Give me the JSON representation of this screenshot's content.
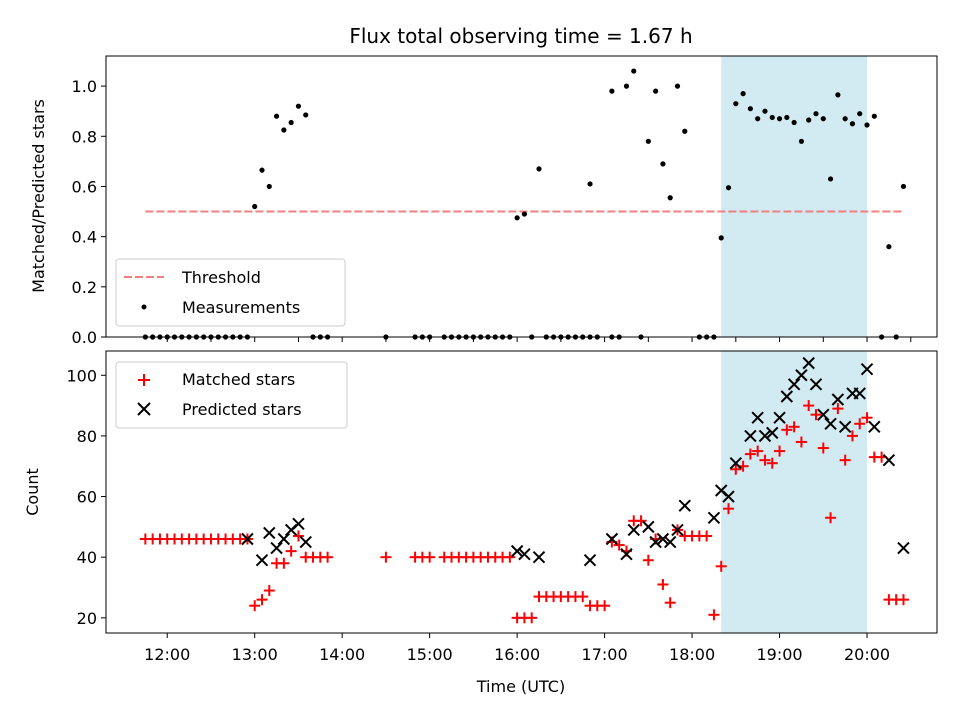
{
  "chart_data": [
    {
      "type": "scatter",
      "title": "Flux total observing time = 1.67 h",
      "xlabel": "",
      "ylabel": "Matched/Predicted stars",
      "xlim": [
        "11:18",
        "20:48"
      ],
      "ylim": [
        0,
        1.12
      ],
      "x_ticks": [
        "12:00",
        "13:00",
        "14:00",
        "15:00",
        "16:00",
        "17:00",
        "18:00",
        "19:00",
        "20:00"
      ],
      "y_ticks": [
        "0.0",
        "0.2",
        "0.4",
        "0.6",
        "0.8",
        "1.0"
      ],
      "shaded_region": {
        "x": [
          "18:20",
          "20:00"
        ],
        "color": "#add8e6"
      },
      "legend_position": "lower-left",
      "threshold": {
        "name": "Threshold",
        "value": 0.5,
        "x": [
          "11:45",
          "20:24"
        ],
        "color": "#f08080"
      },
      "series": [
        {
          "name": "Measurements",
          "color": "#000000",
          "marker": "dot",
          "points": [
            [
              "11:45",
              0
            ],
            [
              "11:50",
              0
            ],
            [
              "11:55",
              0
            ],
            [
              "12:00",
              0
            ],
            [
              "12:05",
              0
            ],
            [
              "12:10",
              0
            ],
            [
              "12:15",
              0
            ],
            [
              "12:20",
              0
            ],
            [
              "12:25",
              0
            ],
            [
              "12:30",
              0
            ],
            [
              "12:35",
              0
            ],
            [
              "12:40",
              0
            ],
            [
              "12:45",
              0
            ],
            [
              "12:50",
              0
            ],
            [
              "12:55",
              0
            ],
            [
              "13:00",
              0.52
            ],
            [
              "13:05",
              0.665
            ],
            [
              "13:10",
              0.6
            ],
            [
              "13:15",
              0.88
            ],
            [
              "13:20",
              0.825
            ],
            [
              "13:25",
              0.855
            ],
            [
              "13:30",
              0.92
            ],
            [
              "13:35",
              0.885
            ],
            [
              "13:40",
              0
            ],
            [
              "13:45",
              0
            ],
            [
              "13:50",
              0
            ],
            [
              "14:30",
              0
            ],
            [
              "14:50",
              0
            ],
            [
              "14:55",
              0
            ],
            [
              "15:00",
              0
            ],
            [
              "15:10",
              0
            ],
            [
              "15:15",
              0
            ],
            [
              "15:20",
              0
            ],
            [
              "15:25",
              0
            ],
            [
              "15:30",
              0
            ],
            [
              "15:35",
              0
            ],
            [
              "15:40",
              0
            ],
            [
              "15:45",
              0
            ],
            [
              "15:50",
              0
            ],
            [
              "15:55",
              0
            ],
            [
              "16:00",
              0.475
            ],
            [
              "16:05",
              0.49
            ],
            [
              "16:15",
              0.67
            ],
            [
              "16:10",
              0
            ],
            [
              "16:20",
              0
            ],
            [
              "16:25",
              0
            ],
            [
              "16:30",
              0
            ],
            [
              "16:35",
              0
            ],
            [
              "16:40",
              0
            ],
            [
              "16:45",
              0
            ],
            [
              "16:50",
              0
            ],
            [
              "16:55",
              0
            ],
            [
              "17:05",
              0
            ],
            [
              "17:10",
              0
            ],
            [
              "17:25",
              0
            ],
            [
              "16:50",
              0.61
            ],
            [
              "17:05",
              0.98
            ],
            [
              "17:15",
              1.0
            ],
            [
              "17:20",
              1.06
            ],
            [
              "17:30",
              0.78
            ],
            [
              "17:35",
              0.98
            ],
            [
              "17:40",
              0.69
            ],
            [
              "17:45",
              0.555
            ],
            [
              "17:50",
              1.0
            ],
            [
              "17:55",
              0.82
            ],
            [
              "18:05",
              0
            ],
            [
              "18:10",
              0
            ],
            [
              "18:15",
              0
            ],
            [
              "18:20",
              0.395
            ],
            [
              "18:25",
              0.595
            ],
            [
              "18:30",
              0.93
            ],
            [
              "18:35",
              0.97
            ],
            [
              "18:40",
              0.91
            ],
            [
              "18:45",
              0.87
            ],
            [
              "18:50",
              0.9
            ],
            [
              "18:55",
              0.875
            ],
            [
              "19:00",
              0.87
            ],
            [
              "19:05",
              0.875
            ],
            [
              "19:10",
              0.855
            ],
            [
              "19:15",
              0.78
            ],
            [
              "19:20",
              0.865
            ],
            [
              "19:25",
              0.89
            ],
            [
              "19:30",
              0.87
            ],
            [
              "19:35",
              0.63
            ],
            [
              "19:40",
              0.965
            ],
            [
              "19:45",
              0.87
            ],
            [
              "19:50",
              0.85
            ],
            [
              "19:55",
              0.89
            ],
            [
              "20:00",
              0.845
            ],
            [
              "20:05",
              0.88
            ],
            [
              "20:10",
              0
            ],
            [
              "20:20",
              0
            ],
            [
              "20:15",
              0.36
            ],
            [
              "20:25",
              0.6
            ]
          ]
        }
      ]
    },
    {
      "type": "scatter",
      "xlabel": "Time (UTC)",
      "ylabel": "Count",
      "xlim": [
        "11:18",
        "20:48"
      ],
      "ylim": [
        15,
        108
      ],
      "x_ticks": [
        "12:00",
        "13:00",
        "14:00",
        "15:00",
        "16:00",
        "17:00",
        "18:00",
        "19:00",
        "20:00"
      ],
      "y_ticks": [
        "20",
        "40",
        "60",
        "80",
        "100"
      ],
      "shaded_region": {
        "x": [
          "18:20",
          "20:00"
        ],
        "color": "#add8e6"
      },
      "legend_position": "upper-left",
      "series": [
        {
          "name": "Matched stars",
          "color": "#ff0000",
          "marker": "plus",
          "points": [
            [
              "11:45",
              46
            ],
            [
              "11:50",
              46
            ],
            [
              "11:55",
              46
            ],
            [
              "12:00",
              46
            ],
            [
              "12:05",
              46
            ],
            [
              "12:10",
              46
            ],
            [
              "12:15",
              46
            ],
            [
              "12:20",
              46
            ],
            [
              "12:25",
              46
            ],
            [
              "12:30",
              46
            ],
            [
              "12:35",
              46
            ],
            [
              "12:40",
              46
            ],
            [
              "12:45",
              46
            ],
            [
              "12:50",
              46
            ],
            [
              "12:55",
              46
            ],
            [
              "13:00",
              24
            ],
            [
              "13:05",
              26
            ],
            [
              "13:10",
              29
            ],
            [
              "13:15",
              38
            ],
            [
              "13:20",
              38
            ],
            [
              "13:25",
              42
            ],
            [
              "13:30",
              47
            ],
            [
              "13:35",
              40
            ],
            [
              "13:40",
              40
            ],
            [
              "13:45",
              40
            ],
            [
              "13:50",
              40
            ],
            [
              "14:30",
              40
            ],
            [
              "14:50",
              40
            ],
            [
              "14:55",
              40
            ],
            [
              "15:00",
              40
            ],
            [
              "15:10",
              40
            ],
            [
              "15:15",
              40
            ],
            [
              "15:20",
              40
            ],
            [
              "15:25",
              40
            ],
            [
              "15:30",
              40
            ],
            [
              "15:35",
              40
            ],
            [
              "15:40",
              40
            ],
            [
              "15:45",
              40
            ],
            [
              "15:50",
              40
            ],
            [
              "15:55",
              40
            ],
            [
              "16:00",
              20
            ],
            [
              "16:05",
              20
            ],
            [
              "16:10",
              20
            ],
            [
              "16:15",
              27
            ],
            [
              "16:20",
              27
            ],
            [
              "16:25",
              27
            ],
            [
              "16:30",
              27
            ],
            [
              "16:35",
              27
            ],
            [
              "16:40",
              27
            ],
            [
              "16:45",
              27
            ],
            [
              "16:50",
              24
            ],
            [
              "16:55",
              24
            ],
            [
              "17:00",
              24
            ],
            [
              "17:05",
              45
            ],
            [
              "17:10",
              44
            ],
            [
              "17:15",
              42
            ],
            [
              "17:20",
              52
            ],
            [
              "17:25",
              52
            ],
            [
              "17:30",
              39
            ],
            [
              "17:35",
              46
            ],
            [
              "17:40",
              31
            ],
            [
              "17:45",
              25
            ],
            [
              "17:50",
              49
            ],
            [
              "17:55",
              47
            ],
            [
              "18:00",
              47
            ],
            [
              "18:05",
              47
            ],
            [
              "18:10",
              47
            ],
            [
              "18:15",
              21
            ],
            [
              "18:20",
              37
            ],
            [
              "18:25",
              56
            ],
            [
              "18:30",
              69
            ],
            [
              "18:35",
              70
            ],
            [
              "18:40",
              74
            ],
            [
              "18:45",
              75
            ],
            [
              "18:50",
              72
            ],
            [
              "18:55",
              71
            ],
            [
              "19:00",
              75
            ],
            [
              "19:05",
              82
            ],
            [
              "19:10",
              83
            ],
            [
              "19:15",
              78
            ],
            [
              "19:20",
              90
            ],
            [
              "19:25",
              87
            ],
            [
              "19:30",
              76
            ],
            [
              "19:35",
              53
            ],
            [
              "19:40",
              89
            ],
            [
              "19:45",
              72
            ],
            [
              "19:50",
              80
            ],
            [
              "19:55",
              84
            ],
            [
              "20:00",
              86
            ],
            [
              "20:05",
              73
            ],
            [
              "20:10",
              73
            ],
            [
              "20:15",
              26
            ],
            [
              "20:20",
              26
            ],
            [
              "20:25",
              26
            ]
          ]
        },
        {
          "name": "Predicted stars",
          "color": "#000000",
          "marker": "x",
          "points": [
            [
              "12:55",
              46
            ],
            [
              "13:05",
              39
            ],
            [
              "13:10",
              48
            ],
            [
              "13:15",
              43
            ],
            [
              "13:20",
              46
            ],
            [
              "13:25",
              49
            ],
            [
              "13:30",
              51
            ],
            [
              "13:35",
              45
            ],
            [
              "16:00",
              42
            ],
            [
              "16:05",
              41
            ],
            [
              "16:15",
              40
            ],
            [
              "16:50",
              39
            ],
            [
              "17:05",
              46
            ],
            [
              "17:15",
              41
            ],
            [
              "17:20",
              49
            ],
            [
              "17:30",
              50
            ],
            [
              "17:35",
              45
            ],
            [
              "17:40",
              46
            ],
            [
              "17:45",
              45
            ],
            [
              "17:50",
              49
            ],
            [
              "17:55",
              57
            ],
            [
              "18:15",
              53
            ],
            [
              "18:20",
              62
            ],
            [
              "18:25",
              60
            ],
            [
              "18:30",
              71
            ],
            [
              "18:40",
              80
            ],
            [
              "18:45",
              86
            ],
            [
              "18:50",
              80
            ],
            [
              "18:55",
              81
            ],
            [
              "19:00",
              86
            ],
            [
              "19:05",
              93
            ],
            [
              "19:10",
              97
            ],
            [
              "19:15",
              100
            ],
            [
              "19:20",
              104
            ],
            [
              "19:25",
              97
            ],
            [
              "19:30",
              87
            ],
            [
              "19:35",
              84
            ],
            [
              "19:40",
              92
            ],
            [
              "19:45",
              83
            ],
            [
              "19:50",
              94
            ],
            [
              "19:55",
              94
            ],
            [
              "20:00",
              102
            ],
            [
              "20:05",
              83
            ],
            [
              "20:15",
              72
            ],
            [
              "20:25",
              43
            ]
          ]
        }
      ]
    }
  ]
}
